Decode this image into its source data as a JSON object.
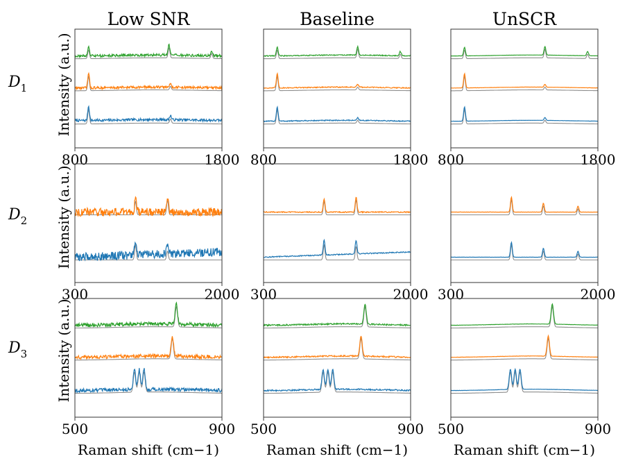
{
  "figure": {
    "column_titles": [
      "Low SNR",
      "Baseline",
      "UnSCR"
    ],
    "row_labels": [
      {
        "base": "D",
        "sub": "1"
      },
      {
        "base": "D",
        "sub": "2"
      },
      {
        "base": "D",
        "sub": "3"
      }
    ],
    "ylabel": "Intensity (a.u.)",
    "xlabel": "Raman shift (cm−1)"
  },
  "colors": {
    "blue": "#1f77b4",
    "orange": "#ff7f0e",
    "green": "#2ca02c",
    "reference": "#8c8c8c"
  },
  "chart_data": [
    {
      "type": "line",
      "dataset": "D1",
      "method": "Low SNR",
      "xlim": [
        800,
        1800
      ],
      "xticks": [
        800,
        1800
      ],
      "series": [
        {
          "color": "blue",
          "peaks": [
            [
              893,
              1.0
            ],
            [
              1450,
              0.3
            ]
          ]
        },
        {
          "color": "orange",
          "peaks": [
            [
              893,
              1.0
            ],
            [
              1450,
              0.25
            ]
          ]
        },
        {
          "color": "green",
          "peaks": [
            [
              893,
              0.6
            ],
            [
              1440,
              0.7
            ],
            [
              1730,
              0.35
            ]
          ]
        }
      ]
    },
    {
      "type": "line",
      "dataset": "D1",
      "method": "Baseline",
      "xlim": [
        800,
        1800
      ],
      "xticks": [
        800,
        1800
      ],
      "series": [
        {
          "color": "blue",
          "peaks": [
            [
              893,
              1.0
            ],
            [
              1440,
              0.2
            ]
          ]
        },
        {
          "color": "orange",
          "peaks": [
            [
              893,
              1.0
            ],
            [
              1440,
              0.2
            ]
          ]
        },
        {
          "color": "green",
          "peaks": [
            [
              893,
              0.6
            ],
            [
              1440,
              0.6
            ],
            [
              1730,
              0.3
            ]
          ]
        }
      ]
    },
    {
      "type": "line",
      "dataset": "D1",
      "method": "UnSCR",
      "xlim": [
        800,
        1800
      ],
      "xticks": [
        800,
        1800
      ],
      "series": [
        {
          "color": "blue",
          "peaks": [
            [
              893,
              1.0
            ],
            [
              1440,
              0.2
            ]
          ]
        },
        {
          "color": "orange",
          "peaks": [
            [
              893,
              1.0
            ],
            [
              1440,
              0.2
            ]
          ]
        },
        {
          "color": "green",
          "peaks": [
            [
              893,
              0.6
            ],
            [
              1440,
              0.6
            ],
            [
              1730,
              0.3
            ]
          ]
        }
      ]
    },
    {
      "type": "line",
      "dataset": "D2",
      "method": "Low SNR",
      "xlim": [
        300,
        2000
      ],
      "xticks": [
        300,
        2000
      ],
      "series": [
        {
          "color": "blue",
          "peaks": [
            [
              1000,
              1.0
            ],
            [
              1370,
              0.6
            ]
          ]
        },
        {
          "color": "orange",
          "peaks": [
            [
              1000,
              0.9
            ],
            [
              1370,
              1.0
            ]
          ]
        }
      ]
    },
    {
      "type": "line",
      "dataset": "D2",
      "method": "Baseline",
      "xlim": [
        300,
        2000
      ],
      "xticks": [
        300,
        2000
      ],
      "series": [
        {
          "color": "blue",
          "peaks": [
            [
              1000,
              1.0
            ],
            [
              1370,
              0.9
            ]
          ]
        },
        {
          "color": "orange",
          "peaks": [
            [
              1000,
              0.9
            ],
            [
              1370,
              1.0
            ]
          ]
        }
      ]
    },
    {
      "type": "line",
      "dataset": "D2",
      "method": "UnSCR",
      "xlim": [
        300,
        2000
      ],
      "xticks": [
        300,
        2000
      ],
      "series": [
        {
          "color": "blue",
          "peaks": [
            [
              1000,
              1.0
            ],
            [
              1370,
              0.6
            ],
            [
              1770,
              0.4
            ]
          ]
        },
        {
          "color": "orange",
          "peaks": [
            [
              1000,
              1.0
            ],
            [
              1370,
              0.6
            ],
            [
              1770,
              0.4
            ]
          ]
        }
      ]
    },
    {
      "type": "line",
      "dataset": "D3",
      "method": "Low SNR",
      "xlim": [
        500,
        900
      ],
      "xticks": [
        500,
        900
      ],
      "series": [
        {
          "color": "blue",
          "peaks": [
            [
              662,
              1.0
            ],
            [
              675,
              1.0
            ],
            [
              688,
              1.0
            ]
          ]
        },
        {
          "color": "orange",
          "peaks": [
            [
              765,
              1.0
            ]
          ]
        },
        {
          "color": "green",
          "peaks": [
            [
              776,
              1.0
            ]
          ]
        }
      ]
    },
    {
      "type": "line",
      "dataset": "D3",
      "method": "Baseline",
      "xlim": [
        500,
        900
      ],
      "xticks": [
        500,
        900
      ],
      "series": [
        {
          "color": "blue",
          "peaks": [
            [
              662,
              1.0
            ],
            [
              675,
              1.0
            ],
            [
              688,
              1.0
            ]
          ]
        },
        {
          "color": "orange",
          "peaks": [
            [
              765,
              1.0
            ]
          ]
        },
        {
          "color": "green",
          "peaks": [
            [
              776,
              1.0
            ]
          ]
        }
      ]
    },
    {
      "type": "line",
      "dataset": "D3",
      "method": "UnSCR",
      "xlim": [
        500,
        900
      ],
      "xticks": [
        500,
        900
      ],
      "series": [
        {
          "color": "blue",
          "peaks": [
            [
              662,
              1.0
            ],
            [
              675,
              1.0
            ],
            [
              688,
              1.0
            ]
          ]
        },
        {
          "color": "orange",
          "peaks": [
            [
              765,
              1.0
            ]
          ]
        },
        {
          "color": "green",
          "peaks": [
            [
              776,
              1.0
            ]
          ]
        }
      ]
    }
  ]
}
